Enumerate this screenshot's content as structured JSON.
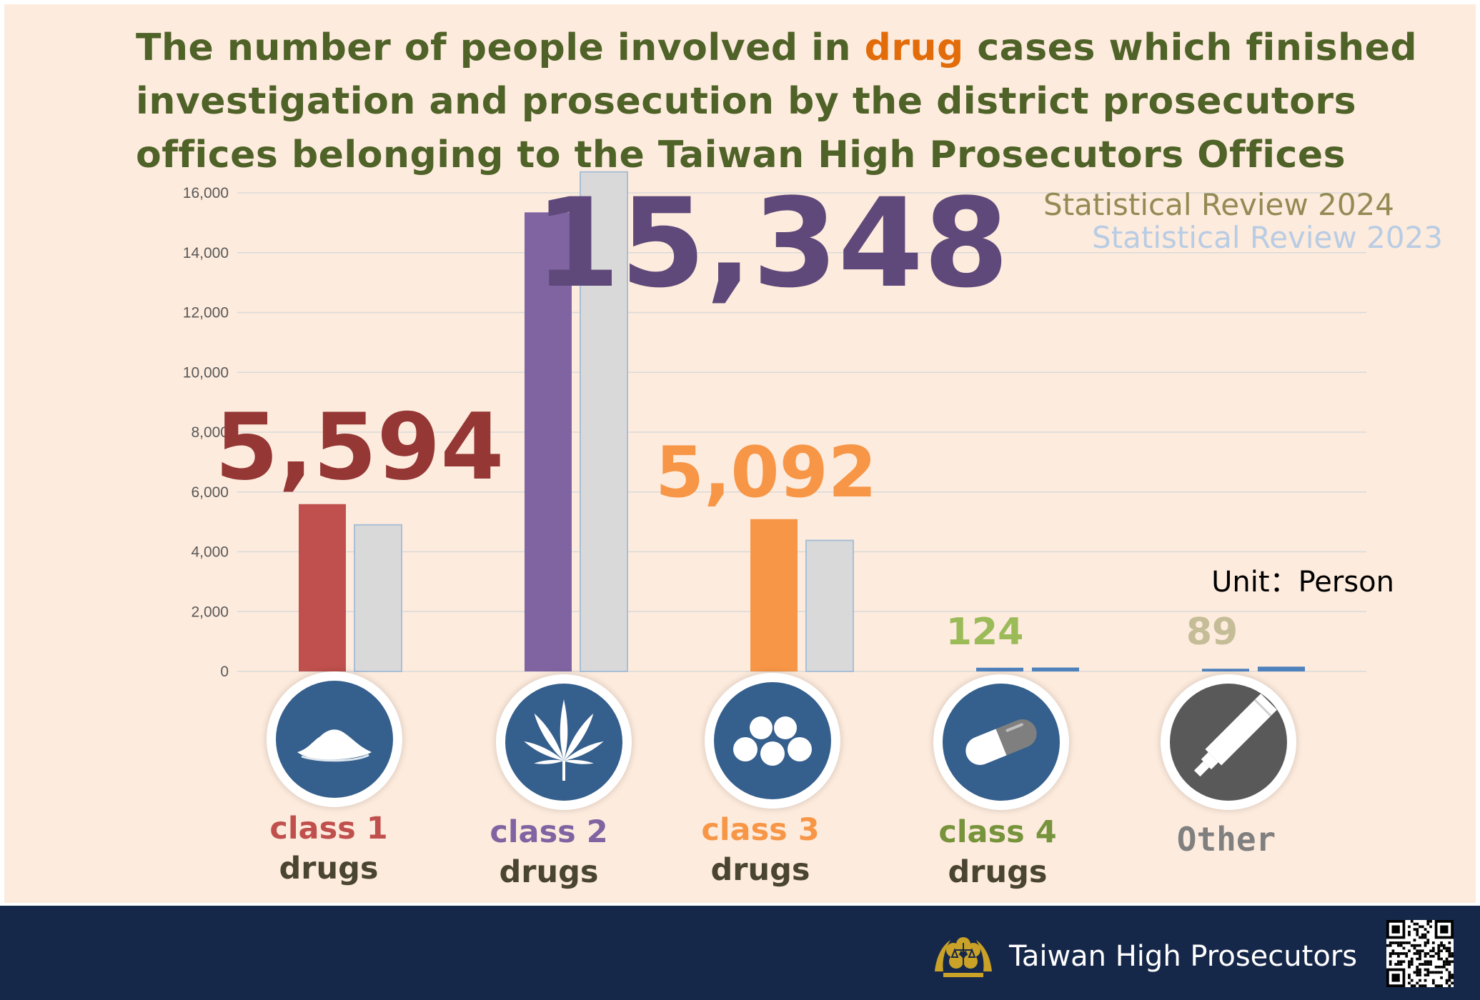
{
  "title": {
    "part1": "The number of people involved in ",
    "highlight": "drug",
    "part2": " cases which finished investigation and prosecution by the district prosecutors offices belonging to the Taiwan High Prosecutors Offices"
  },
  "colors": {
    "title": "#4f6228",
    "title_highlight": "#e36c0a",
    "background": "#fdebdd",
    "footer": "#16284a",
    "series_2023": "#d9d9d9",
    "icon_blue": "#355f8d",
    "icon_gray": "#595959"
  },
  "legend": {
    "y2024": "Statistical Review 2024",
    "y2023": "Statistical Review 2023"
  },
  "unit_label": "Unit：Person",
  "chart_data": {
    "type": "bar",
    "categories": [
      "class 1 drugs",
      "class 2 drugs",
      "class 3 drugs",
      "class 4 drugs",
      "Other"
    ],
    "series": [
      {
        "name": "Statistical Review 2024",
        "values": [
          5594,
          15348,
          5092,
          124,
          89
        ],
        "colors": [
          "#c0504d",
          "#8064a2",
          "#f79646",
          "#4f81bd",
          "#4f81bd"
        ]
      },
      {
        "name": "Statistical Review 2023",
        "values": [
          4900,
          16700,
          4380,
          130,
          160
        ],
        "colors": [
          "#d9d9d9",
          "#d9d9d9",
          "#d9d9d9",
          "#4f81bd",
          "#4f81bd"
        ]
      }
    ],
    "ylim": [
      0,
      16000
    ],
    "yticks": [
      0,
      2000,
      4000,
      6000,
      8000,
      10000,
      12000,
      14000,
      16000
    ],
    "ytick_labels": [
      "0",
      "2,000",
      "4,000",
      "6,000",
      "8,000",
      "10,000",
      "12,000",
      "14,000",
      "16,000"
    ],
    "grid": true,
    "legend_position": "top-right",
    "value_labels": [
      {
        "text": "5,594",
        "color": "#953735"
      },
      {
        "text": "15,348",
        "color": "#5f497a"
      },
      {
        "text": "5,092",
        "color": "#f79646"
      },
      {
        "text": "124",
        "color": "#9bbb59"
      },
      {
        "text": "89",
        "color": "#c4bd97"
      }
    ]
  },
  "categories": [
    {
      "line1": "class 1",
      "line2": "drugs",
      "color": "#c0504d",
      "icon": "powder-icon"
    },
    {
      "line1": "class 2",
      "line2": "drugs",
      "color": "#8064a2",
      "icon": "cannabis-leaf-icon"
    },
    {
      "line1": "class 3",
      "line2": "drugs",
      "color": "#f79646",
      "icon": "pills-icon"
    },
    {
      "line1": "class 4",
      "line2": "drugs",
      "color": "#77933c",
      "icon": "capsule-icon"
    },
    {
      "line1": "Other",
      "line2": "",
      "color": "#808080",
      "icon": "tube-icon"
    }
  ],
  "footer": {
    "org_name": "Taiwan High Prosecutors"
  }
}
